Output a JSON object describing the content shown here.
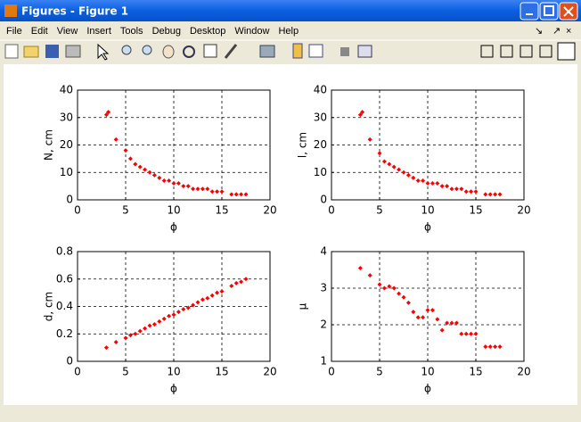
{
  "window": {
    "title": "Figures - Figure 1",
    "menu": [
      "File",
      "Edit",
      "View",
      "Insert",
      "Tools",
      "Debug",
      "Desktop",
      "Window",
      "Help"
    ]
  },
  "chart_data": [
    {
      "type": "scatter",
      "xlabel": "ϕ",
      "ylabel": "N, cm",
      "color": "#ff0000",
      "grid": true,
      "xlim": [
        0,
        20
      ],
      "xticks": [
        0,
        5,
        10,
        15,
        20
      ],
      "ylim": [
        0,
        40
      ],
      "yticks": [
        0,
        10,
        20,
        30,
        40
      ],
      "x": [
        3,
        3.2,
        4,
        5,
        5.5,
        6,
        6.5,
        7,
        7.5,
        8,
        8.5,
        9,
        9.5,
        10,
        10.5,
        11,
        11.5,
        12,
        12.5,
        13,
        13.5,
        14,
        14.5,
        15,
        16,
        16.5,
        17,
        17.5
      ],
      "values": [
        31,
        32,
        22,
        18,
        15,
        13,
        12,
        11,
        10,
        9,
        8,
        7,
        7,
        6,
        6,
        5,
        5,
        4,
        4,
        4,
        4,
        3,
        3,
        3,
        2,
        2,
        2,
        2
      ]
    },
    {
      "type": "scatter",
      "xlabel": "ϕ",
      "ylabel": "l, cm",
      "color": "#ff0000",
      "grid": true,
      "xlim": [
        0,
        20
      ],
      "xticks": [
        0,
        5,
        10,
        15,
        20
      ],
      "ylim": [
        0,
        40
      ],
      "yticks": [
        0,
        10,
        20,
        30,
        40
      ],
      "x": [
        3,
        3.2,
        4,
        5,
        5.5,
        6,
        6.5,
        7,
        7.5,
        8,
        8.5,
        9,
        9.5,
        10,
        10.5,
        11,
        11.5,
        12,
        12.5,
        13,
        13.5,
        14,
        14.5,
        15,
        16,
        16.5,
        17,
        17.5
      ],
      "values": [
        31,
        32,
        22,
        17,
        14,
        13,
        12,
        11,
        10,
        9,
        8,
        7,
        7,
        6,
        6,
        6,
        5,
        5,
        4,
        4,
        4,
        3,
        3,
        3,
        2,
        2,
        2,
        2
      ]
    },
    {
      "type": "scatter",
      "xlabel": "ϕ",
      "ylabel": "d, cm",
      "color": "#ff0000",
      "grid": true,
      "xlim": [
        0,
        20
      ],
      "xticks": [
        0,
        5,
        10,
        15,
        20
      ],
      "ylim": [
        0,
        0.8
      ],
      "yticks": [
        0,
        0.2,
        0.4,
        0.6,
        0.8
      ],
      "x": [
        3,
        4,
        5,
        5.5,
        6,
        6.5,
        7,
        7.5,
        8,
        8.5,
        9,
        9.5,
        10,
        10.5,
        11,
        11.5,
        12,
        12.5,
        13,
        13.5,
        14,
        14.5,
        15,
        16,
        16.5,
        17,
        17.5
      ],
      "values": [
        0.1,
        0.14,
        0.17,
        0.19,
        0.2,
        0.22,
        0.24,
        0.26,
        0.27,
        0.29,
        0.31,
        0.33,
        0.34,
        0.36,
        0.38,
        0.39,
        0.41,
        0.43,
        0.45,
        0.46,
        0.48,
        0.5,
        0.51,
        0.55,
        0.57,
        0.58,
        0.6
      ]
    },
    {
      "type": "scatter",
      "xlabel": "ϕ",
      "ylabel": "μ",
      "color": "#ff0000",
      "grid": true,
      "xlim": [
        0,
        20
      ],
      "xticks": [
        0,
        5,
        10,
        15,
        20
      ],
      "ylim": [
        1,
        4
      ],
      "yticks": [
        1,
        2,
        3,
        4
      ],
      "x": [
        3,
        4,
        5,
        5.5,
        6,
        6.5,
        7,
        7.5,
        8,
        8.5,
        9,
        9.5,
        10,
        10.5,
        11,
        11.5,
        12,
        12.5,
        13,
        13.5,
        14,
        14.5,
        15,
        16,
        16.5,
        17,
        17.5
      ],
      "values": [
        3.55,
        3.35,
        3.1,
        3.0,
        3.05,
        3.0,
        2.85,
        2.75,
        2.6,
        2.35,
        2.2,
        2.2,
        2.4,
        2.4,
        2.15,
        1.85,
        2.05,
        2.05,
        2.05,
        1.75,
        1.75,
        1.75,
        1.75,
        1.4,
        1.4,
        1.4,
        1.4
      ]
    }
  ]
}
